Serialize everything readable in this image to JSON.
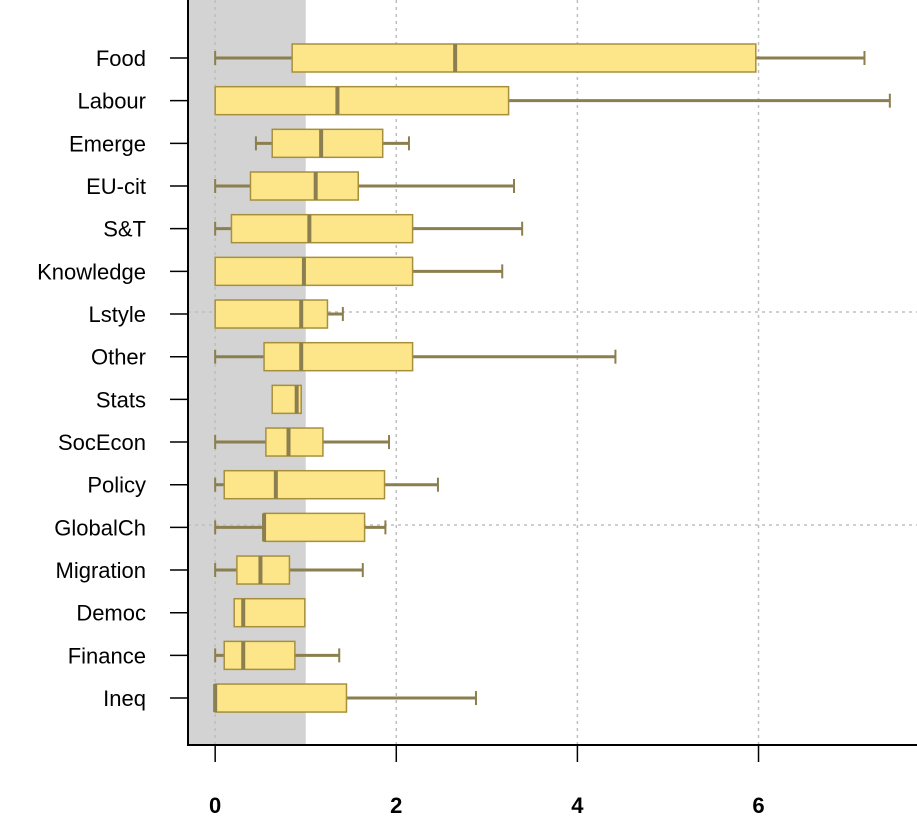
{
  "chart_data": {
    "type": "boxplot",
    "orientation": "horizontal",
    "title": "",
    "xlabel": "",
    "ylabel": "",
    "xlim": [
      -0.3,
      7.75
    ],
    "xticks": [
      0,
      2,
      4,
      6
    ],
    "xtick_labels": [
      "0",
      "2",
      "4",
      "6"
    ],
    "grid": true,
    "shaded_region": [
      -0.3,
      1.0
    ],
    "colors": {
      "box_fill": "#FDE68A",
      "box_edge": "#A88F3C",
      "median": "#8B7F4F",
      "whisker": "#8B7F4F",
      "shade": "#D3D3D3",
      "grid": "#BFBFBF"
    },
    "categories": [
      "Food",
      "Labour",
      "Emerge",
      "EU-cit",
      "S&T",
      "Knowledge",
      "Lstyle",
      "Other",
      "Stats",
      "SocEcon",
      "Policy",
      "GlobalCh",
      "Migration",
      "Democ",
      "Finance",
      "Ineq"
    ],
    "boxes": [
      {
        "label": "Food",
        "min": 0.0,
        "q1": 0.85,
        "median": 2.65,
        "q3": 5.97,
        "max": 7.17
      },
      {
        "label": "Labour",
        "min": 0.0,
        "q1": 0.0,
        "median": 1.35,
        "q3": 3.24,
        "max": 7.45
      },
      {
        "label": "Emerge",
        "min": 0.45,
        "q1": 0.63,
        "median": 1.17,
        "q3": 1.85,
        "max": 2.14
      },
      {
        "label": "EU-cit",
        "min": 0.0,
        "q1": 0.39,
        "median": 1.11,
        "q3": 1.58,
        "max": 3.3
      },
      {
        "label": "S&T",
        "min": 0.0,
        "q1": 0.18,
        "median": 1.04,
        "q3": 2.18,
        "max": 3.39
      },
      {
        "label": "Knowledge",
        "min": 0.0,
        "q1": 0.0,
        "median": 0.98,
        "q3": 2.18,
        "max": 3.17
      },
      {
        "label": "Lstyle",
        "min": 0.0,
        "q1": 0.0,
        "median": 0.95,
        "q3": 1.24,
        "max": 1.41
      },
      {
        "label": "Other",
        "min": 0.0,
        "q1": 0.54,
        "median": 0.95,
        "q3": 2.18,
        "max": 4.42
      },
      {
        "label": "Stats",
        "min": 0.63,
        "q1": 0.63,
        "median": 0.9,
        "q3": 0.95,
        "max": 0.95
      },
      {
        "label": "SocEcon",
        "min": 0.0,
        "q1": 0.56,
        "median": 0.81,
        "q3": 1.19,
        "max": 1.92
      },
      {
        "label": "Policy",
        "min": 0.0,
        "q1": 0.1,
        "median": 0.67,
        "q3": 1.87,
        "max": 2.46
      },
      {
        "label": "GlobalCh",
        "min": 0.0,
        "q1": 0.54,
        "median": 0.54,
        "q3": 1.65,
        "max": 1.88
      },
      {
        "label": "Migration",
        "min": 0.0,
        "q1": 0.24,
        "median": 0.5,
        "q3": 0.82,
        "max": 1.63
      },
      {
        "label": "Democ",
        "min": 0.21,
        "q1": 0.21,
        "median": 0.31,
        "q3": 0.99,
        "max": 0.99
      },
      {
        "label": "Finance",
        "min": 0.0,
        "q1": 0.1,
        "median": 0.31,
        "q3": 0.88,
        "max": 1.37
      },
      {
        "label": "Ineq",
        "min": 0.0,
        "q1": 0.0,
        "median": 0.0,
        "q3": 1.45,
        "max": 2.88
      }
    ]
  }
}
